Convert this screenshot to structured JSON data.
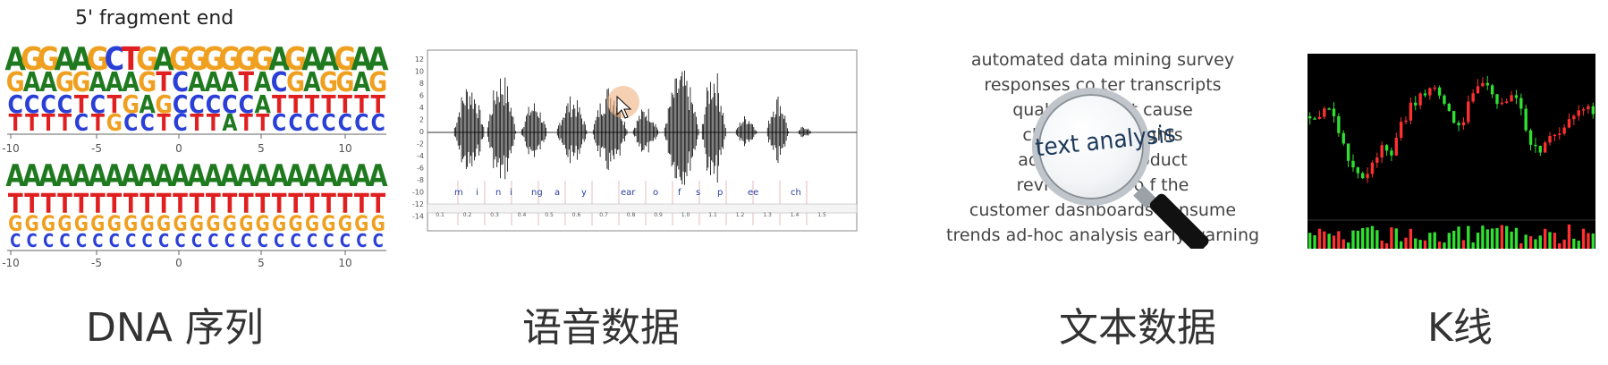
{
  "captions": {
    "dna": "DNA 序列",
    "speech": "语音数据",
    "text": "文本数据",
    "kline": "K线"
  },
  "dna_panel": {
    "title": "5' fragment end",
    "top_logo_sequence": "AGGAAGCTGAGGGGGGAGAAGAA",
    "bottom_rows": [
      "AAAAAAAAAAAAAAAAAAAAAAA",
      "TTTTTTTTTTTTTTTTTTTTTTT",
      "GGGGGGGGGGGGGGGGGGGGGGG",
      "CCCCCCCCCCCCCCCCCCCCCCC"
    ],
    "x_ticks": [
      "-10",
      "-5",
      "0",
      "5",
      "10"
    ],
    "colors": {
      "A": "#1f7a1f",
      "C": "#2a3fd6",
      "G": "#f0a020",
      "T": "#e02020"
    }
  },
  "speech_panel": {
    "y_ticks": [
      "12",
      "10",
      "8",
      "6",
      "4",
      "2",
      "0",
      "-2",
      "-4",
      "-6",
      "-8",
      "-10",
      "-12",
      "-14"
    ],
    "phonemes": [
      "m",
      "i",
      "n",
      "i",
      "ng",
      "a",
      "y",
      "ear",
      "o",
      "f",
      "s",
      "p",
      "ee",
      "ch"
    ],
    "x_ticks": [
      "0.1",
      "0.2",
      "0.3",
      "0.4",
      "0.5",
      "0.6",
      "0.7",
      "0.8",
      "0.9",
      "1.0",
      "1.1",
      "1.2",
      "1.3",
      "1.4",
      "1.5"
    ]
  },
  "text_panel": {
    "lines": [
      "automated data mining survey",
      "responses co          ter transcripts",
      "qualatativ              root cause",
      "classificati              insights",
      "ad-hoc an              s product",
      "reviews se              t vo    f the",
      "customer dashboards consume",
      "trends ad-hoc analysis early warning"
    ],
    "magnifier_text": "text analysis"
  },
  "kline_panel": {
    "background": "#000000",
    "up_color": "#ff3030",
    "down_color": "#30e030"
  }
}
